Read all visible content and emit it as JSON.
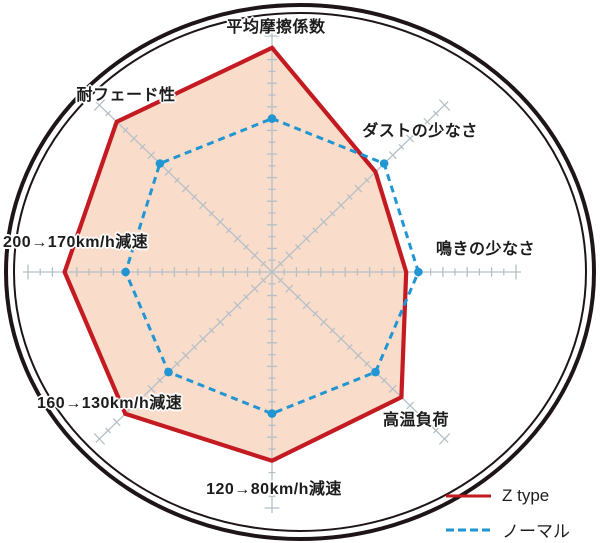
{
  "chart_data": {
    "type": "radar",
    "axes": [
      "平均摩擦係数",
      "ダストの少なさ",
      "鳴きの少なさ",
      "高温負荷",
      "120→80km/h減速",
      "160→130km/h減速",
      "200→170km/h減速",
      "耐フェード性"
    ],
    "axis_order": "clockwise-from-top",
    "scale": {
      "min": 0,
      "max": 10,
      "tick_step": 0.5,
      "ticks_per_axis": 20
    },
    "series": [
      {
        "name": "Z type",
        "style": "solid",
        "color": "#c41a22",
        "fill": "#f9dcc9",
        "values": [
          9.5,
          6,
          5.5,
          7.5,
          8,
          8.5,
          8.5,
          9
        ]
      },
      {
        "name": "ノーマル",
        "style": "dashed",
        "color": "#2196d3",
        "fill": "none",
        "values": [
          6.5,
          6.5,
          6,
          6,
          6,
          6,
          6,
          6.5
        ]
      }
    ],
    "legend_position": "bottom-right",
    "grid": "tick-marks-on-axes",
    "colors": {
      "axis": "#b6c0c9",
      "outer_ring": "#1e1518",
      "label_text": "#1c1c1c",
      "background": "#ffffff"
    }
  }
}
